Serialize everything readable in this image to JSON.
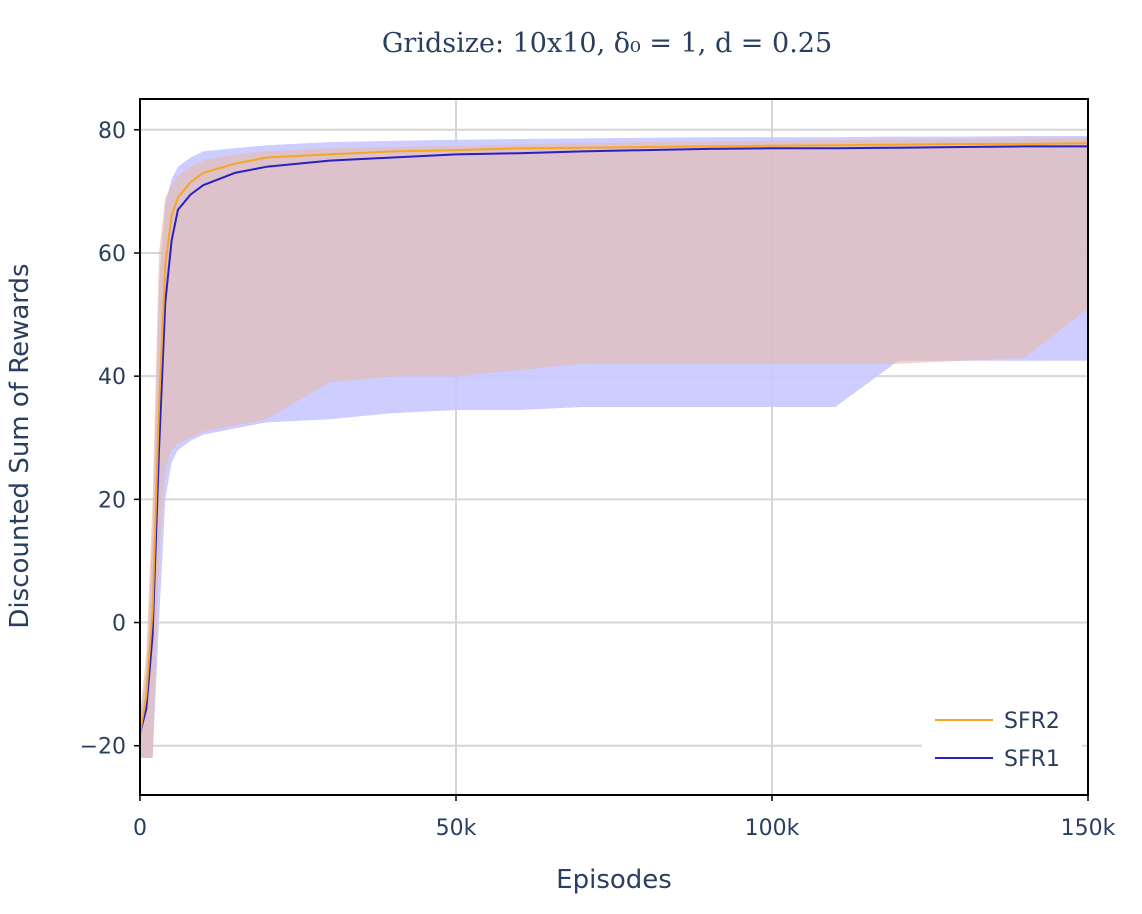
{
  "chart_data": {
    "type": "line",
    "title": "Gridsize: 10x10, δ₀ = 1, d = 0.25",
    "xlabel": "Episodes",
    "ylabel": "Discounted Sum of Rewards",
    "xlim": [
      0,
      150000
    ],
    "ylim": [
      -28,
      85
    ],
    "xticks": [
      0,
      50000,
      100000,
      150000
    ],
    "xtick_labels": [
      "0",
      "50k",
      "100k",
      "150k"
    ],
    "yticks": [
      -20,
      0,
      20,
      40,
      60,
      80
    ],
    "ytick_labels": [
      "−20",
      "0",
      "20",
      "40",
      "60",
      "80"
    ],
    "grid": true,
    "legend_position": "bottom-right",
    "series": [
      {
        "name": "SFR2",
        "color": "#f5a623",
        "band_color": "#e8b9a8",
        "x": [
          0,
          1000,
          2000,
          3000,
          4000,
          5000,
          6000,
          8000,
          10000,
          15000,
          20000,
          30000,
          40000,
          50000,
          60000,
          70000,
          80000,
          90000,
          100000,
          110000,
          120000,
          130000,
          140000,
          150000
        ],
        "mean": [
          -18,
          -12,
          2,
          35,
          58,
          66,
          69,
          71.5,
          73,
          74.5,
          75.5,
          76,
          76.5,
          76.7,
          77,
          77.1,
          77.2,
          77.3,
          77.4,
          77.5,
          77.6,
          77.7,
          77.7,
          77.8
        ],
        "upper": [
          -15,
          -5,
          20,
          60,
          69,
          71,
          72.5,
          74,
          75,
          76,
          76.5,
          77,
          77.2,
          77.4,
          77.6,
          77.8,
          78,
          78.1,
          78.2,
          78.3,
          78.4,
          78.5,
          78.6,
          78.7
        ],
        "lower": [
          -22,
          -22,
          -22,
          10,
          25,
          28,
          29,
          30,
          31,
          32,
          33,
          39,
          40,
          40,
          41,
          42,
          42,
          42,
          42,
          42,
          42,
          42.5,
          43,
          51
        ]
      },
      {
        "name": "SFR1",
        "color": "#2a1fbf",
        "band_color": "#c8c8ff",
        "x": [
          0,
          1000,
          2000,
          3000,
          4000,
          5000,
          6000,
          8000,
          10000,
          15000,
          20000,
          30000,
          40000,
          50000,
          60000,
          70000,
          80000,
          90000,
          100000,
          110000,
          120000,
          130000,
          140000,
          150000
        ],
        "mean": [
          -18,
          -14,
          -2,
          28,
          52,
          62,
          67,
          69.5,
          71,
          73,
          74,
          75,
          75.5,
          76,
          76.2,
          76.5,
          76.7,
          76.9,
          77,
          77,
          77.1,
          77.2,
          77.3,
          77.3
        ],
        "upper": [
          -15,
          -8,
          15,
          55,
          68,
          72,
          74,
          75.5,
          76.5,
          77,
          77.5,
          78,
          78.2,
          78.4,
          78.5,
          78.6,
          78.7,
          78.8,
          78.8,
          78.8,
          78.9,
          78.9,
          79,
          79
        ],
        "lower": [
          -22,
          -22,
          -22,
          0,
          20,
          26,
          28,
          29.5,
          30.5,
          31.5,
          32.5,
          33,
          34,
          34.5,
          34.5,
          35,
          35,
          35,
          35,
          35,
          42.5,
          42.5,
          42.5,
          42.5
        ]
      }
    ]
  }
}
